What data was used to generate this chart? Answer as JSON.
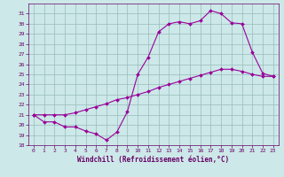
{
  "xlabel": "Windchill (Refroidissement éolien,°C)",
  "line_color": "#990099",
  "bg_color": "#cce8e8",
  "grid_color": "#99bbbb",
  "ylim": [
    18,
    32
  ],
  "xlim": [
    -0.5,
    23.5
  ],
  "yticks": [
    18,
    19,
    20,
    21,
    22,
    23,
    24,
    25,
    26,
    27,
    28,
    29,
    30,
    31
  ],
  "xticks": [
    0,
    1,
    2,
    3,
    4,
    5,
    6,
    7,
    8,
    9,
    10,
    11,
    12,
    13,
    14,
    15,
    16,
    17,
    18,
    19,
    20,
    21,
    22,
    23
  ],
  "line1_x": [
    0,
    1,
    2,
    3,
    4,
    5,
    6,
    7,
    8,
    9,
    10,
    11,
    12,
    13,
    14,
    15,
    16,
    17,
    18,
    19,
    20,
    21,
    22,
    23
  ],
  "line1_y": [
    21,
    20.3,
    20.3,
    19.8,
    19.8,
    19.4,
    19.1,
    18.5,
    19.3,
    21.3,
    25.0,
    26.7,
    29.2,
    30.0,
    30.2,
    30.0,
    30.3,
    31.3,
    31.0,
    30.1,
    30.0,
    27.2,
    25.1,
    24.8
  ],
  "line2_x": [
    0,
    1,
    2,
    3,
    4,
    5,
    6,
    7,
    8,
    9,
    10,
    11,
    12,
    13,
    14,
    15,
    16,
    17,
    18,
    19,
    20,
    21,
    22,
    23
  ],
  "line2_y": [
    21,
    21.0,
    21.0,
    21.0,
    21.2,
    21.5,
    21.8,
    22.1,
    22.5,
    22.7,
    23.0,
    23.3,
    23.7,
    24.0,
    24.3,
    24.6,
    24.9,
    25.2,
    25.5,
    25.5,
    25.3,
    25.0,
    24.8,
    24.8
  ],
  "marker": "D",
  "markersize": 2.0,
  "linewidth": 0.8
}
